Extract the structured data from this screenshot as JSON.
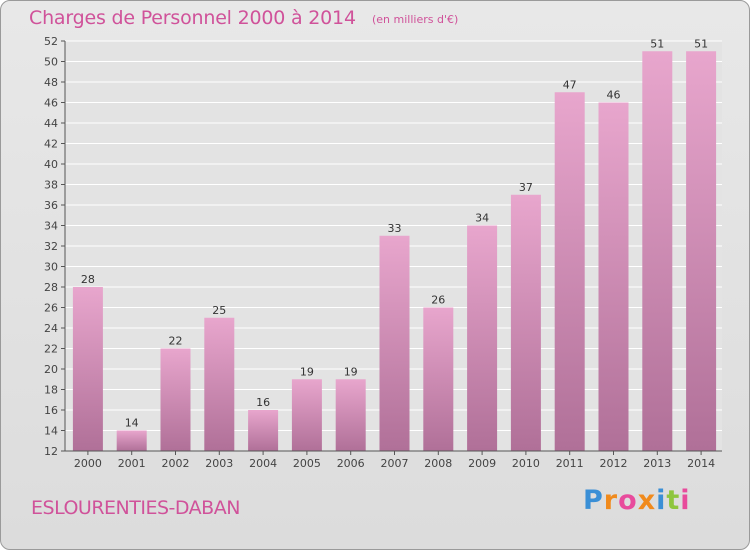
{
  "header": {
    "title": "Charges de Personnel 2000 à 2014",
    "unit_note": "(en milliers d'€)"
  },
  "footer": {
    "commune": "ESLOURENTIES-DABAN",
    "logo_letters": [
      "P",
      "r",
      "o",
      "x",
      "i",
      "t",
      "i"
    ],
    "logo_colors": [
      "#3a8fd6",
      "#f08a1c",
      "#e84b9c",
      "#f08a1c",
      "#3a8fd6",
      "#8ec63f",
      "#e84b9c"
    ]
  },
  "colors": {
    "accent": "#d0529a",
    "bar_top": "#e8a6cd",
    "bar_bottom": "#b07098",
    "grid": "#ffffff",
    "axis_text": "#444444"
  },
  "chart_data": {
    "type": "bar",
    "title": "Charges de Personnel 2000 à 2014",
    "subtitle": "(en milliers d'€)",
    "xlabel": "",
    "ylabel": "",
    "categories": [
      "2000",
      "2001",
      "2002",
      "2003",
      "2004",
      "2005",
      "2006",
      "2007",
      "2008",
      "2009",
      "2010",
      "2011",
      "2012",
      "2013",
      "2014"
    ],
    "values": [
      28,
      14,
      22,
      25,
      16,
      19,
      19,
      33,
      26,
      34,
      37,
      47,
      46,
      51,
      51
    ],
    "ylim": [
      12,
      52
    ],
    "yticks": [
      12,
      14,
      16,
      18,
      20,
      22,
      24,
      26,
      28,
      30,
      32,
      34,
      36,
      38,
      40,
      42,
      44,
      46,
      48,
      50,
      52
    ],
    "grid": true,
    "data_labels": true
  }
}
